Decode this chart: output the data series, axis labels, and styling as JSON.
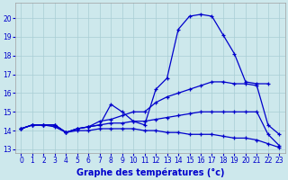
{
  "title": "Graphe des températures (°c)",
  "background_color": "#cde8ec",
  "grid_color": "#a8cdd4",
  "line_color": "#0000cc",
  "xlim": [
    -0.5,
    23.5
  ],
  "ylim": [
    12.8,
    20.8
  ],
  "yticks": [
    13,
    14,
    15,
    16,
    17,
    18,
    19,
    20
  ],
  "xticks": [
    0,
    1,
    2,
    3,
    4,
    5,
    6,
    7,
    8,
    9,
    10,
    11,
    12,
    13,
    14,
    15,
    16,
    17,
    18,
    19,
    20,
    21,
    22,
    23
  ],
  "series": [
    {
      "x": [
        0,
        1,
        2,
        3,
        4,
        5,
        6,
        7,
        8,
        9,
        10,
        11,
        12,
        13,
        14,
        15,
        16,
        17,
        18,
        19,
        20,
        21,
        22
      ],
      "y": [
        14.1,
        14.3,
        14.3,
        14.3,
        13.9,
        14.1,
        14.2,
        14.3,
        15.4,
        15.0,
        14.5,
        14.3,
        16.2,
        16.8,
        19.4,
        20.1,
        20.2,
        20.1,
        19.1,
        18.1,
        16.6,
        16.5,
        16.5
      ]
    },
    {
      "x": [
        0,
        1,
        2,
        3,
        4,
        5,
        6,
        7,
        8,
        9,
        10,
        11,
        12,
        13,
        14,
        15,
        16,
        17,
        18,
        19,
        20,
        21,
        22,
        23
      ],
      "y": [
        14.1,
        14.3,
        14.3,
        14.3,
        13.9,
        14.1,
        14.2,
        14.5,
        14.6,
        14.8,
        15.0,
        15.0,
        15.5,
        15.8,
        16.0,
        16.2,
        16.4,
        16.6,
        16.6,
        16.5,
        16.5,
        16.4,
        14.3,
        13.8
      ]
    },
    {
      "x": [
        0,
        1,
        2,
        3,
        4,
        5,
        6,
        7,
        8,
        9,
        10,
        11,
        12,
        13,
        14,
        15,
        16,
        17,
        18,
        19,
        20,
        21,
        22,
        23
      ],
      "y": [
        14.1,
        14.3,
        14.3,
        14.3,
        13.9,
        14.1,
        14.2,
        14.3,
        14.4,
        14.4,
        14.5,
        14.5,
        14.6,
        14.7,
        14.8,
        14.9,
        15.0,
        15.0,
        15.0,
        15.0,
        15.0,
        15.0,
        13.8,
        13.2
      ]
    },
    {
      "x": [
        0,
        1,
        2,
        3,
        4,
        5,
        6,
        7,
        8,
        9,
        10,
        11,
        12,
        13,
        14,
        15,
        16,
        17,
        18,
        19,
        20,
        21,
        22,
        23
      ],
      "y": [
        14.1,
        14.3,
        14.3,
        14.2,
        13.9,
        14.0,
        14.0,
        14.1,
        14.1,
        14.1,
        14.1,
        14.0,
        14.0,
        13.9,
        13.9,
        13.8,
        13.8,
        13.8,
        13.7,
        13.6,
        13.6,
        13.5,
        13.3,
        13.1
      ]
    }
  ]
}
